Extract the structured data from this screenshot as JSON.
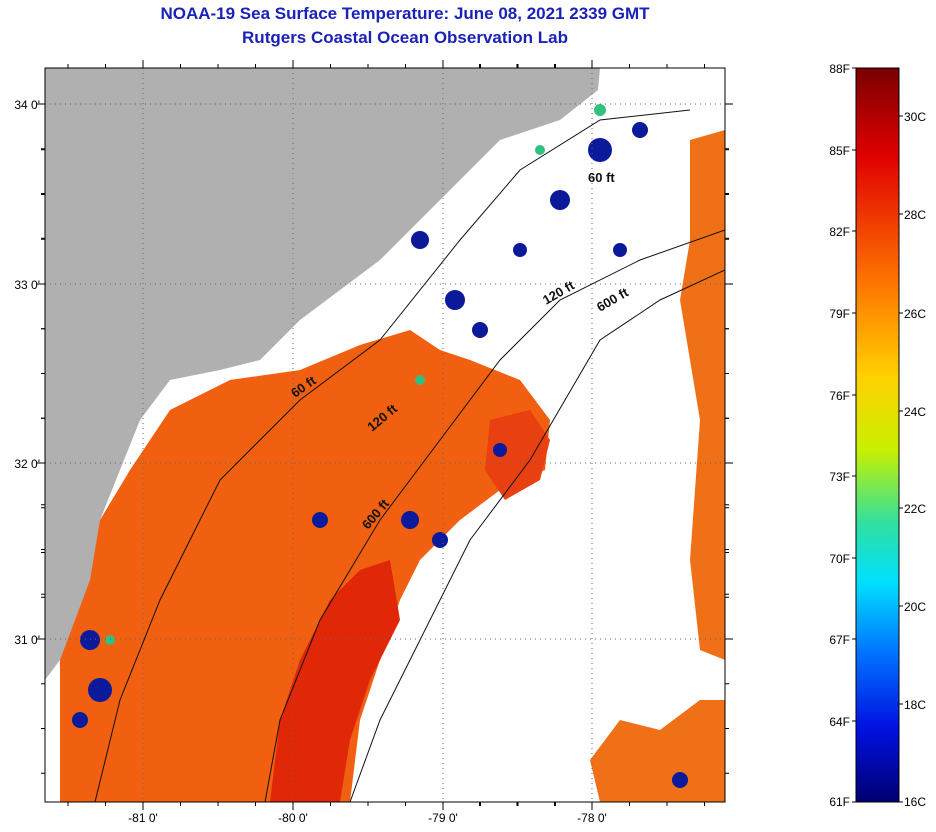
{
  "title": "NOAA-19 Sea Surface Temperature:  June 08, 2021 2339 GMT",
  "subtitle": "Rutgers Coastal Ocean Observation Lab",
  "map": {
    "lat_labels": [
      "34 0'",
      "33 0'",
      "32 0'",
      "31 0'"
    ],
    "lon_labels": [
      "-81 0'",
      "-80 0'",
      "-79 0'",
      "-78 0'"
    ],
    "contour_labels": [
      "60 ft",
      "120 ft",
      "600 ft",
      "120 ft",
      "600 ft",
      "60 ft"
    ],
    "colors": {
      "land": "#b0b0b0",
      "cloud": "#ffffff",
      "warm_water": "#f06010",
      "hot_water": "#e02808",
      "cool_water": "#1030c0",
      "cold_water": "#000c90"
    }
  },
  "colorbar": {
    "fahrenheit_labels": [
      "88F",
      "85F",
      "82F",
      "79F",
      "76F",
      "73F",
      "70F",
      "67F",
      "64F",
      "61F"
    ],
    "celsius_labels": [
      "30C",
      "28C",
      "26C",
      "24C",
      "22C",
      "20C",
      "18C",
      "16C"
    ]
  }
}
